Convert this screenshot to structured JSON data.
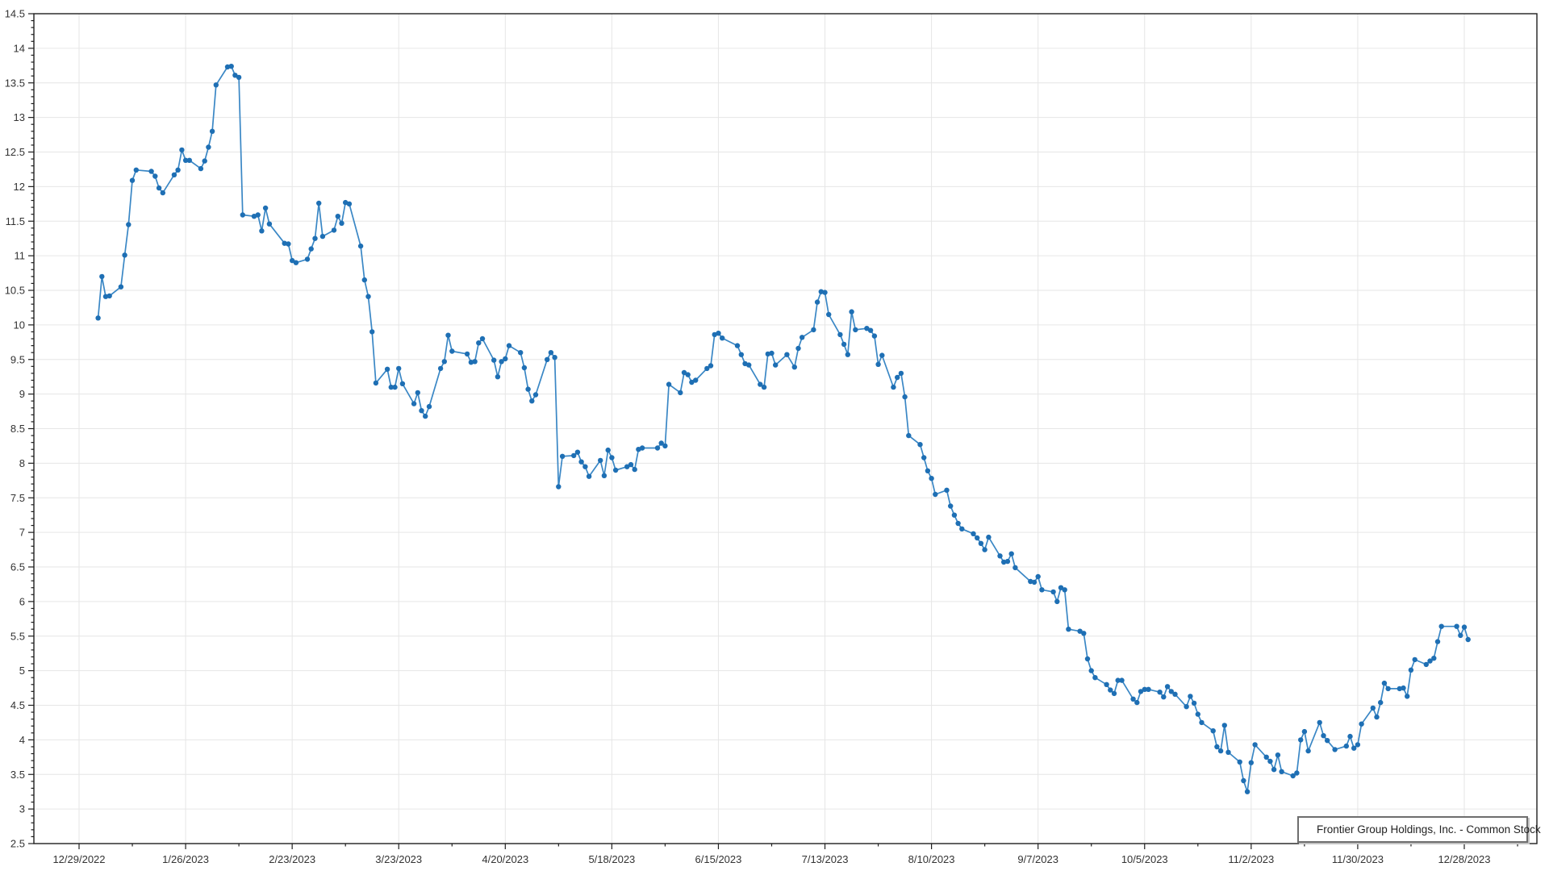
{
  "window": {
    "background": "#ffffff"
  },
  "legend": {
    "label": "Frontier Group Holdings, Inc. - Common Stock",
    "marker_icon": "line-dot-marker",
    "position": "bottom-right"
  },
  "colors": {
    "line": "#3a87c5",
    "marker": "#1e6fb4",
    "grid": "#e6e6e6",
    "axis": "#1f1f1f",
    "tick_label": "#333333",
    "legend_border": "#6e6e6e",
    "background": "#ffffff"
  },
  "chart_data": {
    "type": "line",
    "title": "",
    "grid": true,
    "legend_position": "bottom-right",
    "y_axis": {
      "min": 2.5,
      "max": 14.5,
      "major_step": 0.5,
      "minor_step": 0.1,
      "tick_labels": [
        "14.5",
        "14",
        "13.5",
        "13",
        "12.5",
        "12",
        "11.5",
        "11",
        "10.5",
        "10",
        "9.5",
        "9",
        "8.5",
        "8",
        "7.5",
        "7",
        "6.5",
        "6",
        "5.5",
        "5",
        "4.5",
        "4",
        "3.5",
        "3",
        "2.5"
      ]
    },
    "x_axis": {
      "type": "date",
      "first_major_tick": "2022-12-29",
      "major_tick_interval_days": 28,
      "minor_tick_interval_days": 14,
      "tick_labels": [
        "12/29/2022",
        "1/26/2023",
        "2/23/2023",
        "3/23/2023",
        "4/20/2023",
        "5/18/2023",
        "6/15/2023",
        "7/13/2023",
        "8/10/2023",
        "9/7/2023",
        "10/5/2023",
        "11/2/2023",
        "11/30/2023",
        "12/28/2023"
      ]
    },
    "series": [
      {
        "name": "Frontier Group Holdings, Inc. - Common Stock",
        "points_by_month": [
          {
            "month": "2023-01",
            "days": [
              3,
              4,
              5,
              6,
              9,
              10,
              11,
              12,
              13,
              17,
              18,
              19,
              20,
              23,
              24,
              25,
              26,
              27,
              30,
              31
            ],
            "closes": [
              10.1,
              10.7,
              10.41,
              10.42,
              10.55,
              11.01,
              11.45,
              12.09,
              12.24,
              12.22,
              12.15,
              11.98,
              11.91,
              12.17,
              12.24,
              12.53,
              12.38,
              12.38,
              12.26,
              12.37
            ]
          },
          {
            "month": "2023-02",
            "days": [
              1,
              2,
              3,
              6,
              7,
              8,
              9,
              10,
              13,
              14,
              15,
              16,
              17,
              21,
              22,
              23,
              24,
              27,
              28
            ],
            "closes": [
              12.57,
              12.8,
              13.47,
              13.73,
              13.74,
              13.61,
              13.58,
              11.59,
              11.57,
              11.59,
              11.36,
              11.69,
              11.46,
              11.18,
              11.17,
              10.93,
              10.9,
              10.95,
              11.1
            ]
          },
          {
            "month": "2023-03",
            "days": [
              1,
              2,
              3,
              6,
              7,
              8,
              9,
              10,
              13,
              14,
              15,
              16,
              17,
              20,
              21,
              22,
              23,
              24,
              27,
              28,
              29,
              30,
              31
            ],
            "closes": [
              11.25,
              11.76,
              11.28,
              11.37,
              11.57,
              11.47,
              11.77,
              11.75,
              11.14,
              10.65,
              10.41,
              9.9,
              9.16,
              9.36,
              9.1,
              9.1,
              9.37,
              9.15,
              8.86,
              9.02,
              8.76,
              8.68,
              8.82
            ]
          },
          {
            "month": "2023-04",
            "days": [
              3,
              4,
              5,
              6,
              10,
              11,
              12,
              13,
              14,
              17,
              18,
              19,
              20,
              21,
              24,
              25,
              26,
              27,
              28
            ],
            "closes": [
              9.37,
              9.47,
              9.85,
              9.62,
              9.58,
              9.46,
              9.47,
              9.74,
              9.8,
              9.49,
              9.25,
              9.47,
              9.51,
              9.7,
              9.6,
              9.38,
              9.07,
              8.9,
              8.99
            ]
          },
          {
            "month": "2023-05",
            "days": [
              1,
              2,
              3,
              4,
              5,
              8,
              9,
              10,
              11,
              12,
              15,
              16,
              17,
              18,
              19,
              22,
              23,
              24,
              25,
              26,
              30,
              31
            ],
            "closes": [
              9.5,
              9.6,
              9.53,
              7.66,
              8.1,
              8.11,
              8.16,
              8.02,
              7.95,
              7.81,
              8.04,
              7.82,
              8.19,
              8.08,
              7.9,
              7.95,
              7.98,
              7.91,
              8.2,
              8.22,
              8.22,
              8.29
            ]
          },
          {
            "month": "2023-06",
            "days": [
              1,
              2,
              5,
              6,
              7,
              8,
              9,
              12,
              13,
              14,
              15,
              16,
              20,
              21,
              22,
              23,
              26,
              27,
              28,
              29,
              30
            ],
            "closes": [
              8.25,
              9.14,
              9.02,
              9.31,
              9.28,
              9.17,
              9.2,
              9.37,
              9.41,
              9.86,
              9.88,
              9.81,
              9.7,
              9.57,
              9.44,
              9.42,
              9.14,
              9.1,
              9.58,
              9.59,
              9.42
            ]
          },
          {
            "month": "2023-07",
            "days": [
              3,
              5,
              6,
              7,
              10,
              11,
              12,
              13,
              14,
              17,
              18,
              19,
              20,
              21,
              24,
              25,
              26,
              27,
              28,
              31
            ],
            "closes": [
              9.57,
              9.39,
              9.66,
              9.82,
              9.93,
              10.33,
              10.48,
              10.47,
              10.15,
              9.86,
              9.72,
              9.57,
              10.19,
              9.93,
              9.95,
              9.92,
              9.84,
              9.43,
              9.56,
              9.1
            ]
          },
          {
            "month": "2023-08",
            "days": [
              1,
              2,
              3,
              4,
              7,
              8,
              9,
              10,
              11,
              14,
              15,
              16,
              17,
              18,
              21,
              22,
              23,
              24,
              25,
              28,
              29,
              30,
              31
            ],
            "closes": [
              9.24,
              9.3,
              8.96,
              8.4,
              8.27,
              8.08,
              7.89,
              7.78,
              7.55,
              7.61,
              7.38,
              7.25,
              7.13,
              7.05,
              6.98,
              6.92,
              6.84,
              6.75,
              6.93,
              6.66,
              6.57,
              6.58,
              6.69
            ]
          },
          {
            "month": "2023-09",
            "days": [
              1,
              5,
              6,
              7,
              8,
              11,
              12,
              13,
              14,
              15,
              18,
              19,
              20,
              21,
              22,
              25,
              26,
              27,
              28,
              29
            ],
            "closes": [
              6.49,
              6.29,
              6.28,
              6.36,
              6.17,
              6.14,
              6.0,
              6.2,
              6.17,
              5.6,
              5.57,
              5.54,
              5.17,
              5.0,
              4.9,
              4.8,
              4.72,
              4.67,
              4.86,
              4.86
            ]
          },
          {
            "month": "2023-10",
            "days": [
              2,
              3,
              4,
              5,
              6,
              9,
              10,
              11,
              12,
              13,
              16,
              17,
              18,
              19,
              20,
              23,
              24,
              25,
              26,
              27,
              30,
              31
            ],
            "closes": [
              4.59,
              4.54,
              4.7,
              4.73,
              4.73,
              4.69,
              4.62,
              4.77,
              4.7,
              4.66,
              4.48,
              4.63,
              4.53,
              4.37,
              4.25,
              4.13,
              3.9,
              3.84,
              4.21,
              3.82,
              3.68,
              3.41
            ]
          },
          {
            "month": "2023-11",
            "days": [
              1,
              2,
              3,
              6,
              7,
              8,
              9,
              10,
              13,
              14,
              15,
              16,
              17,
              20,
              21,
              22,
              24,
              27,
              28,
              29,
              30
            ],
            "closes": [
              3.25,
              3.67,
              3.93,
              3.75,
              3.69,
              3.57,
              3.78,
              3.54,
              3.48,
              3.52,
              4.0,
              4.12,
              3.84,
              4.25,
              4.06,
              3.99,
              3.86,
              3.91,
              4.05,
              3.88,
              3.93
            ]
          },
          {
            "month": "2023-12",
            "days": [
              1,
              4,
              5,
              6,
              7,
              8,
              11,
              12,
              13,
              14,
              15,
              18,
              19,
              20,
              21,
              22,
              26,
              27,
              28,
              29
            ],
            "closes": [
              4.23,
              4.46,
              4.33,
              4.54,
              4.82,
              4.74,
              4.74,
              4.75,
              4.63,
              5.01,
              5.16,
              5.09,
              5.14,
              5.18,
              5.42,
              5.64,
              5.64,
              5.51,
              5.63,
              5.45
            ]
          }
        ]
      }
    ]
  }
}
